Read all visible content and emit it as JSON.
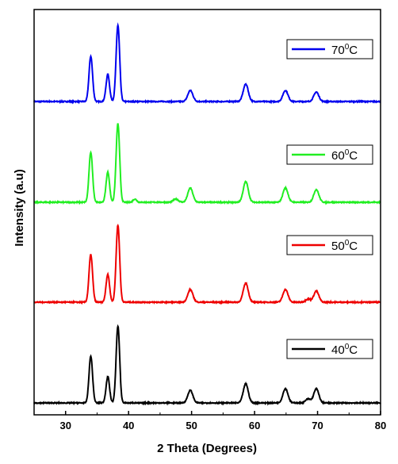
{
  "chart_data": {
    "type": "line",
    "xlabel": "2 Theta (Degrees)",
    "ylabel": "Intensity (a.u)",
    "xlim": [
      25,
      80
    ],
    "xticks": [
      30,
      40,
      50,
      60,
      70,
      80
    ],
    "grid": false,
    "legend_placement": "right",
    "series": [
      {
        "name": "70",
        "unit_sup": "0",
        "unit": "C",
        "color": "#0000ee",
        "peaks": [
          {
            "x": 34.0,
            "h": 0.57
          },
          {
            "x": 36.7,
            "h": 0.34
          },
          {
            "x": 38.3,
            "h": 0.96
          },
          {
            "x": 49.8,
            "h": 0.14
          },
          {
            "x": 58.6,
            "h": 0.22
          },
          {
            "x": 64.9,
            "h": 0.14
          },
          {
            "x": 69.8,
            "h": 0.12
          }
        ]
      },
      {
        "name": "60",
        "unit_sup": "0",
        "unit": "C",
        "color": "#22ee22",
        "peaks": [
          {
            "x": 34.0,
            "h": 0.63
          },
          {
            "x": 36.7,
            "h": 0.38
          },
          {
            "x": 38.3,
            "h": 0.99
          },
          {
            "x": 41.0,
            "h": 0.04
          },
          {
            "x": 47.5,
            "h": 0.04
          },
          {
            "x": 49.8,
            "h": 0.18
          },
          {
            "x": 58.6,
            "h": 0.26
          },
          {
            "x": 64.9,
            "h": 0.18
          },
          {
            "x": 69.8,
            "h": 0.16
          }
        ]
      },
      {
        "name": "50",
        "unit_sup": "0",
        "unit": "C",
        "color": "#ee0000",
        "peaks": [
          {
            "x": 34.0,
            "h": 0.6
          },
          {
            "x": 36.7,
            "h": 0.35
          },
          {
            "x": 38.3,
            "h": 0.97
          },
          {
            "x": 49.8,
            "h": 0.16
          },
          {
            "x": 58.6,
            "h": 0.24
          },
          {
            "x": 64.9,
            "h": 0.16
          },
          {
            "x": 68.5,
            "h": 0.04
          },
          {
            "x": 69.8,
            "h": 0.14
          }
        ]
      },
      {
        "name": "40",
        "unit_sup": "0",
        "unit": "C",
        "color": "#000000",
        "peaks": [
          {
            "x": 34.0,
            "h": 0.59
          },
          {
            "x": 36.7,
            "h": 0.33
          },
          {
            "x": 38.3,
            "h": 0.97
          },
          {
            "x": 49.8,
            "h": 0.16
          },
          {
            "x": 58.6,
            "h": 0.24
          },
          {
            "x": 64.9,
            "h": 0.18
          },
          {
            "x": 68.5,
            "h": 0.05
          },
          {
            "x": 69.8,
            "h": 0.18
          }
        ]
      }
    ]
  }
}
